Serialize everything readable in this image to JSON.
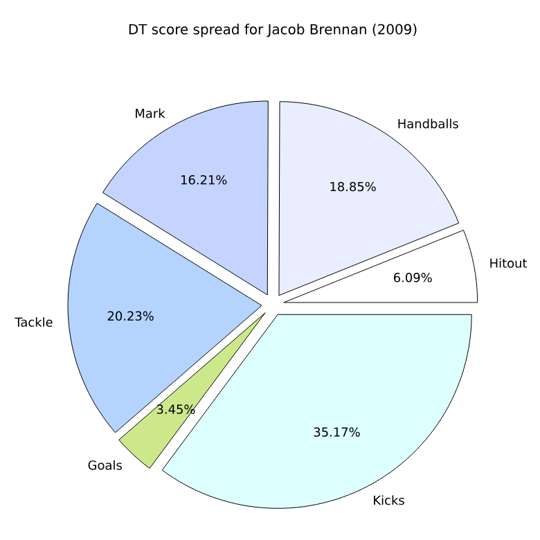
{
  "chart_data": {
    "type": "pie",
    "title": "DT score spread for Jacob Brennan (2009)",
    "categories": [
      "Hitout",
      "Handballs",
      "Mark",
      "Tackle",
      "Goals",
      "Kicks"
    ],
    "values": [
      6.09,
      18.85,
      16.21,
      20.23,
      3.45,
      35.17
    ],
    "value_labels": [
      "6.09%",
      "18.85%",
      "16.21%",
      "20.23%",
      "3.45%",
      "35.17%"
    ],
    "colors": [
      "#ffffff",
      "#e8eeff",
      "#c4d4ff",
      "#b4d4ff",
      "#cce88a",
      "#ddffff"
    ]
  }
}
